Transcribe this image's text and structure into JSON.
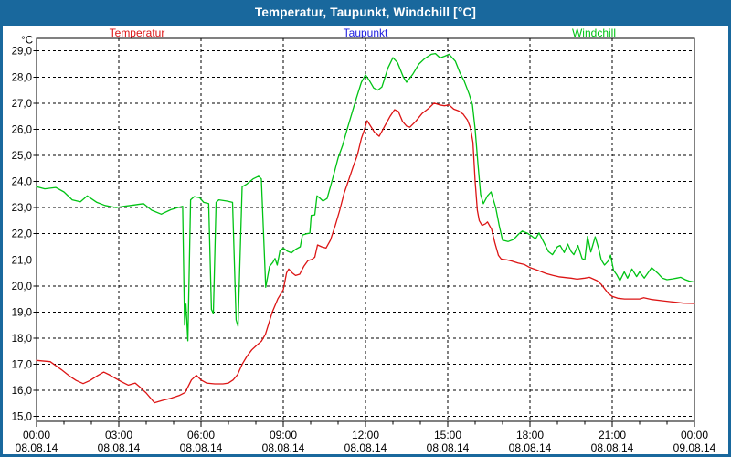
{
  "window": {
    "title": "Temperatur, Taupunkt, Windchill [°C]"
  },
  "colors": {
    "frame_blue": "#19689D",
    "background": "#FFFFFF",
    "grid": "#000000",
    "axis": "#000000",
    "text": "#000000",
    "temperatur_red": "#DC1414",
    "taupunkt_blue": "#2020E0",
    "windchill_green": "#00C314"
  },
  "legend": [
    {
      "label": "Temperatur",
      "color": "#DC1414"
    },
    {
      "label": "Taupunkt",
      "color": "#2020E0"
    },
    {
      "label": "Windchill",
      "color": "#00C314"
    }
  ],
  "axes": {
    "y_unit": "°C",
    "y_ticks": [
      {
        "value": 29,
        "label": "29,0"
      },
      {
        "value": 28,
        "label": "28,0"
      },
      {
        "value": 27,
        "label": "27,0"
      },
      {
        "value": 26,
        "label": "26,0"
      },
      {
        "value": 25,
        "label": "25,0"
      },
      {
        "value": 24,
        "label": "24,0"
      },
      {
        "value": 23,
        "label": "23,0"
      },
      {
        "value": 22,
        "label": "22,0"
      },
      {
        "value": 21,
        "label": "21,0"
      },
      {
        "value": 20,
        "label": "20,0"
      },
      {
        "value": 19,
        "label": "19,0"
      },
      {
        "value": 18,
        "label": "18,0"
      },
      {
        "value": 17,
        "label": "17,0"
      },
      {
        "value": 16,
        "label": "16,0"
      },
      {
        "value": 15,
        "label": "15,0"
      }
    ],
    "x_ticks": [
      {
        "time": "00:00",
        "date": "08.08.14"
      },
      {
        "time": "03:00",
        "date": "08.08.14"
      },
      {
        "time": "06:00",
        "date": "08.08.14"
      },
      {
        "time": "09:00",
        "date": "08.08.14"
      },
      {
        "time": "12:00",
        "date": "08.08.14"
      },
      {
        "time": "15:00",
        "date": "08.08.14"
      },
      {
        "time": "18:00",
        "date": "08.08.14"
      },
      {
        "time": "21:00",
        "date": "08.08.14"
      },
      {
        "time": "00:00",
        "date": "09.08.14"
      }
    ]
  },
  "chart_data": {
    "type": "line",
    "title": "Temperatur, Taupunkt, Windchill [°C]",
    "y_unit": "°C",
    "ylim": [
      14.8,
      29.5
    ],
    "y_gridline_step": 1.0,
    "x_unit": "hours",
    "x_range_hours": [
      0,
      24
    ],
    "x_major_gridline_hours": 3,
    "x_minor_tick_hours": 1,
    "x_start_label": "00:00 08.08.14",
    "x_end_label": "00:00 09.08.14",
    "grid": "dashed",
    "legend_position": "top",
    "series": [
      {
        "id": "temperatur",
        "name": "Temperatur",
        "color": "#DC1414",
        "points": [
          [
            0,
            17.15
          ],
          [
            0.5,
            17.1
          ],
          [
            0.9,
            16.8
          ],
          [
            1.2,
            16.55
          ],
          [
            1.45,
            16.38
          ],
          [
            1.7,
            16.26
          ],
          [
            1.95,
            16.38
          ],
          [
            2.2,
            16.55
          ],
          [
            2.45,
            16.7
          ],
          [
            2.65,
            16.6
          ],
          [
            2.85,
            16.48
          ],
          [
            3.1,
            16.33
          ],
          [
            3.35,
            16.2
          ],
          [
            3.6,
            16.28
          ],
          [
            3.8,
            16.1
          ],
          [
            4.0,
            15.9
          ],
          [
            4.3,
            15.53
          ],
          [
            4.6,
            15.62
          ],
          [
            4.9,
            15.7
          ],
          [
            5.2,
            15.8
          ],
          [
            5.42,
            15.92
          ],
          [
            5.65,
            16.4
          ],
          [
            5.83,
            16.58
          ],
          [
            6.0,
            16.4
          ],
          [
            6.2,
            16.28
          ],
          [
            6.5,
            16.25
          ],
          [
            6.8,
            16.25
          ],
          [
            7.0,
            16.28
          ],
          [
            7.17,
            16.4
          ],
          [
            7.33,
            16.6
          ],
          [
            7.5,
            17.0
          ],
          [
            7.67,
            17.3
          ],
          [
            7.85,
            17.55
          ],
          [
            8.0,
            17.7
          ],
          [
            8.2,
            17.88
          ],
          [
            8.35,
            18.15
          ],
          [
            8.6,
            19.0
          ],
          [
            8.8,
            19.5
          ],
          [
            9.0,
            19.85
          ],
          [
            9.12,
            20.5
          ],
          [
            9.2,
            20.65
          ],
          [
            9.33,
            20.5
          ],
          [
            9.45,
            20.4
          ],
          [
            9.6,
            20.45
          ],
          [
            9.75,
            20.75
          ],
          [
            9.9,
            20.97
          ],
          [
            10.05,
            21.02
          ],
          [
            10.15,
            21.1
          ],
          [
            10.25,
            21.57
          ],
          [
            10.4,
            21.5
          ],
          [
            10.56,
            21.45
          ],
          [
            10.72,
            21.75
          ],
          [
            10.9,
            22.33
          ],
          [
            11.06,
            22.9
          ],
          [
            11.22,
            23.55
          ],
          [
            11.4,
            24.1
          ],
          [
            11.56,
            24.6
          ],
          [
            11.7,
            25.0
          ],
          [
            11.85,
            25.65
          ],
          [
            11.95,
            25.95
          ],
          [
            12.06,
            26.33
          ],
          [
            12.2,
            26.1
          ],
          [
            12.33,
            25.88
          ],
          [
            12.5,
            25.73
          ],
          [
            12.67,
            26.06
          ],
          [
            12.9,
            26.5
          ],
          [
            13.06,
            26.75
          ],
          [
            13.2,
            26.68
          ],
          [
            13.35,
            26.3
          ],
          [
            13.5,
            26.12
          ],
          [
            13.62,
            26.08
          ],
          [
            13.83,
            26.3
          ],
          [
            14.06,
            26.6
          ],
          [
            14.3,
            26.8
          ],
          [
            14.5,
            27.0
          ],
          [
            14.7,
            26.93
          ],
          [
            14.88,
            26.9
          ],
          [
            15.05,
            26.93
          ],
          [
            15.22,
            26.77
          ],
          [
            15.4,
            26.7
          ],
          [
            15.56,
            26.58
          ],
          [
            15.72,
            26.35
          ],
          [
            15.83,
            26.05
          ],
          [
            15.92,
            25.5
          ],
          [
            16.0,
            24.0
          ],
          [
            16.08,
            22.9
          ],
          [
            16.15,
            22.5
          ],
          [
            16.25,
            22.32
          ],
          [
            16.38,
            22.38
          ],
          [
            16.45,
            22.45
          ],
          [
            16.6,
            22.17
          ],
          [
            16.72,
            21.65
          ],
          [
            16.85,
            21.17
          ],
          [
            16.95,
            21.03
          ],
          [
            17.15,
            21.0
          ],
          [
            17.35,
            20.95
          ],
          [
            17.56,
            20.88
          ],
          [
            17.8,
            20.82
          ],
          [
            18.0,
            20.7
          ],
          [
            18.33,
            20.58
          ],
          [
            18.6,
            20.47
          ],
          [
            18.85,
            20.4
          ],
          [
            19.05,
            20.35
          ],
          [
            19.3,
            20.32
          ],
          [
            19.5,
            20.3
          ],
          [
            19.72,
            20.26
          ],
          [
            20.0,
            20.3
          ],
          [
            20.17,
            20.33
          ],
          [
            20.45,
            20.2
          ],
          [
            20.6,
            20.06
          ],
          [
            20.85,
            19.72
          ],
          [
            21.0,
            19.6
          ],
          [
            21.2,
            19.53
          ],
          [
            21.45,
            19.5
          ],
          [
            21.75,
            19.5
          ],
          [
            22.0,
            19.5
          ],
          [
            22.15,
            19.55
          ],
          [
            22.45,
            19.48
          ],
          [
            22.85,
            19.43
          ],
          [
            23.1,
            19.4
          ],
          [
            23.35,
            19.37
          ],
          [
            23.6,
            19.34
          ],
          [
            24.0,
            19.33
          ]
        ]
      },
      {
        "id": "taupunkt",
        "name": "Taupunkt",
        "color": "#2020E0",
        "points": []
      },
      {
        "id": "windchill",
        "name": "Windchill",
        "color": "#00C314",
        "points": [
          [
            0,
            23.8
          ],
          [
            0.3,
            23.72
          ],
          [
            0.7,
            23.77
          ],
          [
            1.0,
            23.6
          ],
          [
            1.3,
            23.3
          ],
          [
            1.6,
            23.22
          ],
          [
            1.85,
            23.45
          ],
          [
            2.2,
            23.2
          ],
          [
            2.5,
            23.08
          ],
          [
            2.9,
            23.0
          ],
          [
            3.2,
            23.05
          ],
          [
            3.55,
            23.1
          ],
          [
            3.9,
            23.15
          ],
          [
            4.2,
            22.9
          ],
          [
            4.55,
            22.75
          ],
          [
            4.9,
            22.92
          ],
          [
            5.15,
            23.0
          ],
          [
            5.33,
            23.05
          ],
          [
            5.4,
            18.5
          ],
          [
            5.45,
            19.3
          ],
          [
            5.52,
            17.9
          ],
          [
            5.62,
            23.3
          ],
          [
            5.75,
            23.42
          ],
          [
            5.95,
            23.38
          ],
          [
            6.1,
            23.2
          ],
          [
            6.28,
            23.15
          ],
          [
            6.38,
            19.1
          ],
          [
            6.45,
            18.95
          ],
          [
            6.55,
            23.2
          ],
          [
            6.65,
            23.3
          ],
          [
            6.95,
            23.25
          ],
          [
            7.15,
            23.2
          ],
          [
            7.28,
            18.7
          ],
          [
            7.35,
            18.45
          ],
          [
            7.5,
            23.8
          ],
          [
            7.67,
            23.9
          ],
          [
            7.9,
            24.1
          ],
          [
            8.1,
            24.2
          ],
          [
            8.2,
            24.1
          ],
          [
            8.25,
            22.8
          ],
          [
            8.36,
            19.95
          ],
          [
            8.5,
            20.75
          ],
          [
            8.62,
            20.9
          ],
          [
            8.7,
            21.05
          ],
          [
            8.78,
            20.8
          ],
          [
            8.88,
            21.35
          ],
          [
            9.0,
            21.45
          ],
          [
            9.15,
            21.33
          ],
          [
            9.3,
            21.27
          ],
          [
            9.45,
            21.4
          ],
          [
            9.62,
            21.5
          ],
          [
            9.7,
            21.95
          ],
          [
            9.85,
            22.0
          ],
          [
            9.97,
            22.02
          ],
          [
            10.02,
            22.7
          ],
          [
            10.15,
            22.72
          ],
          [
            10.23,
            23.45
          ],
          [
            10.33,
            23.37
          ],
          [
            10.45,
            23.25
          ],
          [
            10.6,
            23.35
          ],
          [
            10.72,
            23.8
          ],
          [
            10.85,
            24.3
          ],
          [
            11.0,
            24.9
          ],
          [
            11.17,
            25.4
          ],
          [
            11.33,
            26.0
          ],
          [
            11.5,
            26.6
          ],
          [
            11.67,
            27.2
          ],
          [
            11.85,
            27.8
          ],
          [
            12.0,
            28.08
          ],
          [
            12.12,
            27.9
          ],
          [
            12.3,
            27.58
          ],
          [
            12.45,
            27.5
          ],
          [
            12.6,
            27.62
          ],
          [
            12.82,
            28.35
          ],
          [
            13.0,
            28.74
          ],
          [
            13.17,
            28.55
          ],
          [
            13.38,
            28.0
          ],
          [
            13.5,
            27.8
          ],
          [
            13.72,
            28.1
          ],
          [
            13.95,
            28.5
          ],
          [
            14.15,
            28.7
          ],
          [
            14.4,
            28.87
          ],
          [
            14.55,
            28.9
          ],
          [
            14.72,
            28.73
          ],
          [
            14.9,
            28.8
          ],
          [
            15.05,
            28.87
          ],
          [
            15.28,
            28.6
          ],
          [
            15.45,
            28.15
          ],
          [
            15.6,
            27.85
          ],
          [
            15.78,
            27.35
          ],
          [
            15.9,
            26.95
          ],
          [
            16.0,
            26.0
          ],
          [
            16.1,
            24.7
          ],
          [
            16.2,
            23.5
          ],
          [
            16.3,
            23.15
          ],
          [
            16.45,
            23.45
          ],
          [
            16.58,
            23.6
          ],
          [
            16.75,
            23.0
          ],
          [
            16.88,
            22.3
          ],
          [
            17.0,
            21.75
          ],
          [
            17.2,
            21.7
          ],
          [
            17.4,
            21.78
          ],
          [
            17.58,
            21.98
          ],
          [
            17.72,
            22.1
          ],
          [
            17.9,
            22.02
          ],
          [
            18.05,
            21.92
          ],
          [
            18.2,
            21.8
          ],
          [
            18.33,
            22.03
          ],
          [
            18.5,
            21.68
          ],
          [
            18.67,
            21.32
          ],
          [
            18.82,
            21.2
          ],
          [
            19.0,
            21.5
          ],
          [
            19.1,
            21.55
          ],
          [
            19.25,
            21.28
          ],
          [
            19.38,
            21.6
          ],
          [
            19.5,
            21.32
          ],
          [
            19.6,
            21.2
          ],
          [
            19.75,
            21.55
          ],
          [
            19.9,
            21.05
          ],
          [
            20.0,
            21.0
          ],
          [
            20.1,
            21.9
          ],
          [
            20.22,
            21.3
          ],
          [
            20.38,
            21.88
          ],
          [
            20.5,
            21.45
          ],
          [
            20.6,
            21.0
          ],
          [
            20.72,
            20.8
          ],
          [
            20.85,
            20.95
          ],
          [
            20.94,
            21.18
          ],
          [
            21.05,
            20.6
          ],
          [
            21.17,
            20.42
          ],
          [
            21.28,
            20.2
          ],
          [
            21.44,
            20.54
          ],
          [
            21.56,
            20.3
          ],
          [
            21.72,
            20.65
          ],
          [
            21.89,
            20.36
          ],
          [
            22.0,
            20.54
          ],
          [
            22.17,
            20.3
          ],
          [
            22.44,
            20.7
          ],
          [
            22.67,
            20.48
          ],
          [
            22.83,
            20.3
          ],
          [
            23.0,
            20.24
          ],
          [
            23.2,
            20.27
          ],
          [
            23.35,
            20.3
          ],
          [
            23.5,
            20.33
          ],
          [
            23.67,
            20.24
          ],
          [
            23.83,
            20.18
          ],
          [
            24.0,
            20.15
          ]
        ]
      }
    ]
  }
}
